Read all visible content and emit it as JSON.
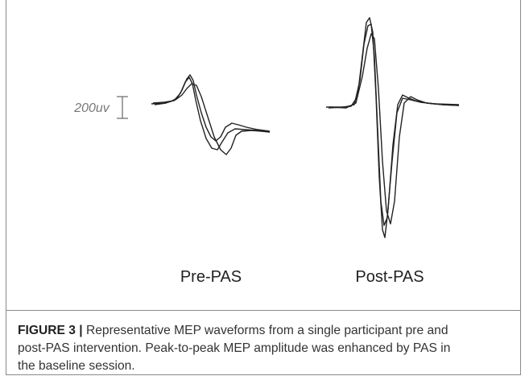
{
  "figure": {
    "scale_bar": "200uv",
    "panels": [
      "Pre-PAS",
      "Post-PAS"
    ]
  },
  "caption": {
    "label": "FIGURE 3 |",
    "lines": [
      " Representative MEP waveforms from a single participant pre and",
      "post-PAS intervention. Peak-to-peak MEP amplitude was enhanced by PAS in",
      "the baseline session."
    ]
  }
}
